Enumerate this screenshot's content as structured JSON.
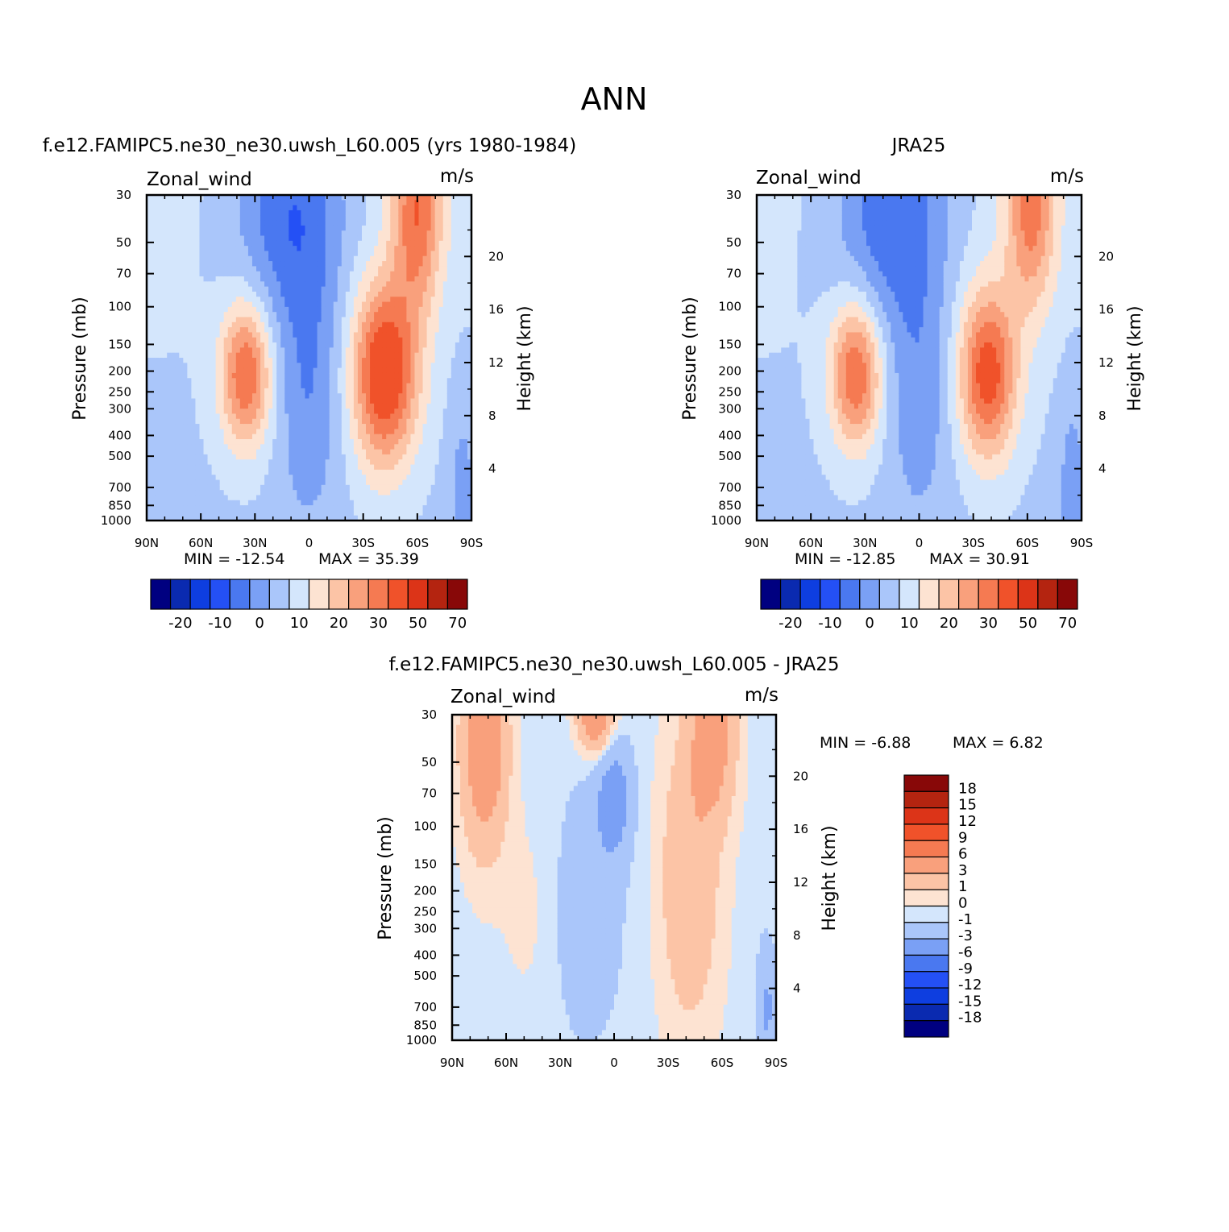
{
  "figure": {
    "main_title": "ANN"
  },
  "colors": {
    "full_field": [
      "#000080",
      "#0a2ab0",
      "#0e3ee0",
      "#2450f5",
      "#4a78f0",
      "#7aa0f5",
      "#aac6fa",
      "#d4e6fc",
      "#fde3d2",
      "#fcc4a6",
      "#f9a07c",
      "#f57a52",
      "#f0522a",
      "#dc3418",
      "#b42410",
      "#880808"
    ],
    "difference": [
      "#000080",
      "#0a2ab0",
      "#0e3ee0",
      "#2450f5",
      "#4a78f0",
      "#7aa0f5",
      "#aac6fa",
      "#d4e6fc",
      "#fde3d2",
      "#fcc4a6",
      "#f9a07c",
      "#f57a52",
      "#f0522a",
      "#dc3418",
      "#b42410",
      "#880808"
    ]
  },
  "chart_data": [
    {
      "type": "heatmap",
      "title": "f.e12.FAMIPC5.ne30_ne30.uwsh_L60.005 (yrs 1980-1984)",
      "left_label": "Zonal_wind",
      "right_label": "m/s",
      "ylabel": "Pressure (mb)",
      "ylabel_right": "Height (km)",
      "x_ticks": [
        "90N",
        "60N",
        "30N",
        "0",
        "30S",
        "60S",
        "90S"
      ],
      "y_ticks": [
        "30",
        "50",
        "70",
        "100",
        "150",
        "200",
        "250",
        "300",
        "400",
        "500",
        "700",
        "850",
        "1000"
      ],
      "y_right_ticks": [
        "20",
        "16",
        "12",
        "8",
        "4"
      ],
      "xlim": [
        90,
        -90
      ],
      "ylim_mb": [
        1000,
        30
      ],
      "min_label": "MIN = -12.54",
      "max_label": "MAX = 35.39",
      "min": -12.54,
      "max": 35.39,
      "colorbar_labels": [
        "-20",
        "-10",
        "0",
        "10",
        "20",
        "30",
        "50",
        "70"
      ],
      "features": [
        {
          "lat": -60,
          "p": 50,
          "u": 30
        },
        {
          "lat": -40,
          "p": 200,
          "u": 35
        },
        {
          "lat": 35,
          "p": 200,
          "u": 25
        },
        {
          "lat": 10,
          "p": 40,
          "u": -12
        },
        {
          "lat": 5,
          "p": 500,
          "u": -10
        }
      ]
    },
    {
      "type": "heatmap",
      "title": "JRA25",
      "left_label": "Zonal_wind",
      "right_label": "m/s",
      "ylabel": "Pressure (mb)",
      "ylabel_right": "Height (km)",
      "x_ticks": [
        "90N",
        "60N",
        "30N",
        "0",
        "30S",
        "60S",
        "90S"
      ],
      "y_ticks": [
        "30",
        "50",
        "70",
        "100",
        "150",
        "200",
        "250",
        "300",
        "400",
        "500",
        "700",
        "850",
        "1000"
      ],
      "y_right_ticks": [
        "20",
        "16",
        "12",
        "8",
        "4"
      ],
      "xlim": [
        90,
        -90
      ],
      "ylim_mb": [
        1000,
        30
      ],
      "min_label": "MIN = -12.85",
      "max_label": "MAX = 30.91",
      "min": -12.85,
      "max": 30.91,
      "colorbar_labels": [
        "-20",
        "-10",
        "0",
        "10",
        "20",
        "30",
        "50",
        "70"
      ],
      "features": [
        {
          "lat": -60,
          "p": 40,
          "u": 25
        },
        {
          "lat": -35,
          "p": 200,
          "u": 30
        },
        {
          "lat": 35,
          "p": 200,
          "u": 25
        },
        {
          "lat": 15,
          "p": 40,
          "u": -12
        }
      ]
    },
    {
      "type": "heatmap",
      "title": "f.e12.FAMIPC5.ne30_ne30.uwsh_L60.005 - JRA25",
      "left_label": "Zonal_wind",
      "right_label": "m/s",
      "ylabel": "Pressure (mb)",
      "ylabel_right": "Height (km)",
      "x_ticks": [
        "90N",
        "60N",
        "30N",
        "0",
        "30S",
        "60S",
        "90S"
      ],
      "y_ticks": [
        "30",
        "50",
        "70",
        "100",
        "150",
        "200",
        "250",
        "300",
        "400",
        "500",
        "700",
        "850",
        "1000"
      ],
      "y_right_ticks": [
        "20",
        "16",
        "12",
        "8",
        "4"
      ],
      "xlim": [
        90,
        -90
      ],
      "ylim_mb": [
        1000,
        30
      ],
      "min_label": "MIN = -6.88",
      "max_label": "MAX = 6.82",
      "min": -6.88,
      "max": 6.82,
      "colorbar_labels": [
        "18",
        "15",
        "12",
        "9",
        "6",
        "3",
        "1",
        "0",
        "-1",
        "-3",
        "-6",
        "-9",
        "-12",
        "-15",
        "-18"
      ],
      "features": [
        {
          "lat": 70,
          "p": 50,
          "u": 6
        },
        {
          "lat": 10,
          "p": 35,
          "u": 6
        },
        {
          "lat": -60,
          "p": 35,
          "u": 6
        },
        {
          "lat": 0,
          "p": 80,
          "u": -4
        },
        {
          "lat": 20,
          "p": 400,
          "u": -2
        }
      ]
    }
  ]
}
